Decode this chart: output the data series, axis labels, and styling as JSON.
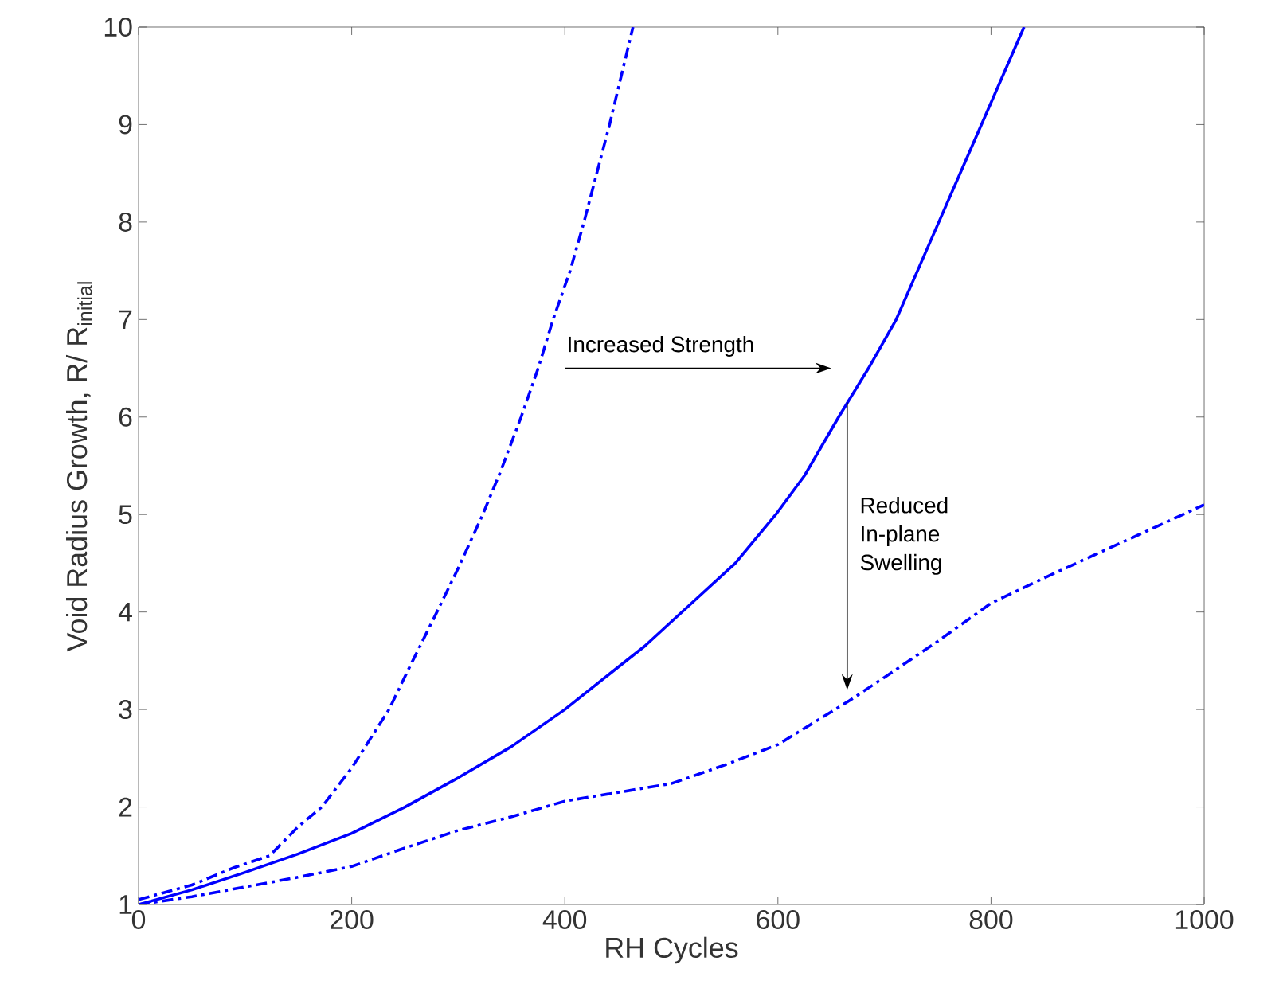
{
  "chart_data": {
    "type": "line",
    "xlabel": "RH Cycles",
    "ylabel": "Void Radius Growth, R/ R$_{initial}$",
    "xlim": [
      0,
      1000
    ],
    "ylim": [
      1,
      10
    ],
    "xticks": [
      0,
      200,
      400,
      600,
      800,
      1000
    ],
    "yticks": [
      1,
      2,
      3,
      4,
      5,
      6,
      7,
      8,
      9,
      10
    ],
    "grid": false,
    "marker": "none",
    "series": [
      {
        "color": "#0000ff",
        "line_style": "dashed",
        "x": [
          0,
          50,
          90,
          123,
          150,
          172,
          200,
          235,
          255,
          280,
          300,
          323,
          340,
          359,
          375,
          389,
          405,
          418,
          430,
          442,
          453,
          464
        ],
        "values": [
          1.05,
          1.2,
          1.38,
          1.5,
          1.8,
          2,
          2.4,
          3,
          3.45,
          4,
          4.45,
          5,
          5.45,
          6,
          6.5,
          7,
          7.5,
          8,
          8.5,
          9,
          9.5,
          10
        ]
      },
      {
        "color": "#0000ff",
        "line_style": "solid",
        "x": [
          0,
          50,
          100,
          150,
          200,
          250,
          300,
          350,
          400,
          438,
          475,
          515,
          560,
          598,
          625,
          657,
          685,
          711,
          731,
          751,
          771,
          791,
          811,
          831
        ],
        "values": [
          1,
          1.15,
          1.33,
          1.52,
          1.73,
          2,
          2.3,
          2.62,
          3,
          3.33,
          3.65,
          4.05,
          4.5,
          5,
          5.4,
          6,
          6.5,
          7,
          7.5,
          8,
          8.5,
          9,
          9.5,
          10
        ]
      },
      {
        "color": "#0000ff",
        "line_style": "dashed",
        "x": [
          0,
          50,
          100,
          150,
          200,
          250,
          300,
          350,
          400,
          450,
          500,
          550,
          600,
          667,
          700,
          750,
          800,
          850,
          900,
          950,
          1000
        ],
        "values": [
          1,
          1.08,
          1.18,
          1.28,
          1.39,
          1.58,
          1.76,
          1.9,
          2.06,
          2.15,
          2.24,
          2.43,
          2.64,
          3.09,
          3.33,
          3.7,
          4.09,
          4.35,
          4.6,
          4.85,
          5.1
        ]
      }
    ],
    "annotations": [
      "Increased Strength",
      "Reduced In-plane Swelling"
    ]
  }
}
